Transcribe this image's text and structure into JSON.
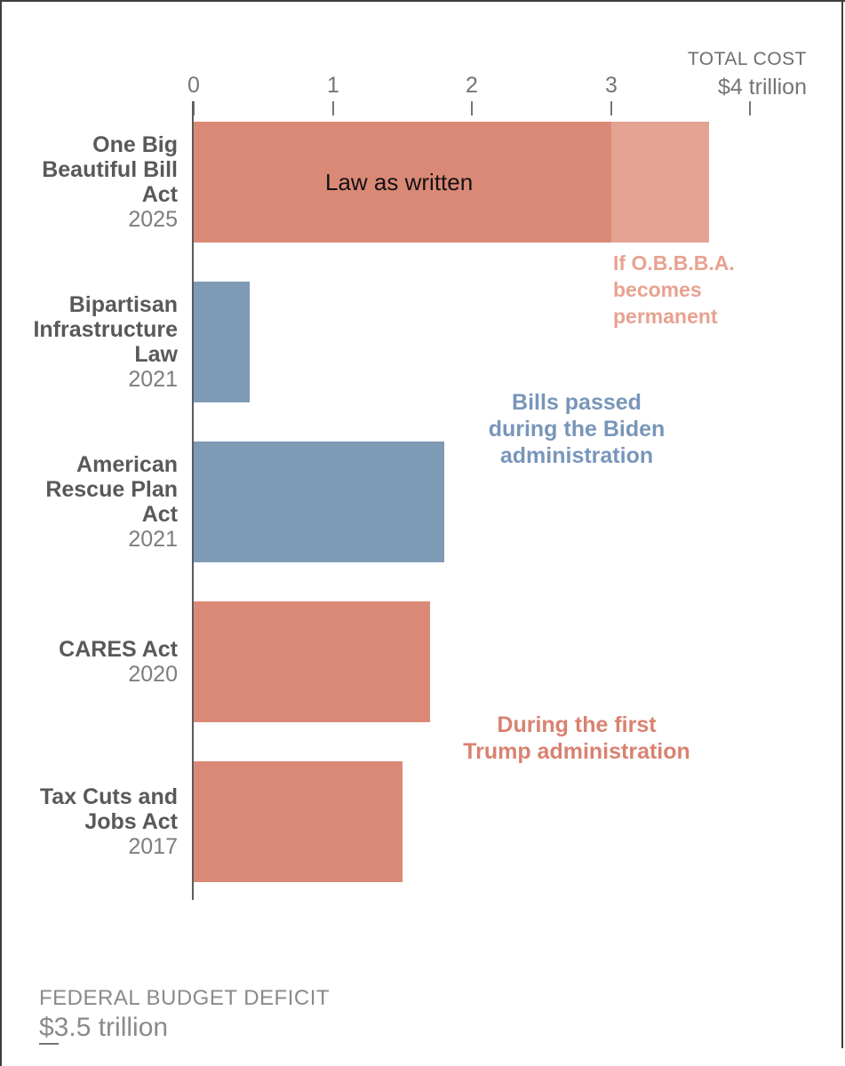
{
  "colors": {
    "salmon": "#DB8977",
    "salmon-light": "#E3A392",
    "blue": "#7E9AB5",
    "blue-text": "#7896BA",
    "salmon-text": "#D98270",
    "salmon-light-text": "#E8A291",
    "axis": "#5C5C5C",
    "tick": "#757575",
    "axis-title": "#6E6E6E",
    "label-strong": "#595959",
    "label-year": "#7D7D7D",
    "footer": "#8A8A8A",
    "frame": "#3F3F3F",
    "bar-label-dark": "#121212"
  },
  "chart_data": {
    "type": "bar",
    "orientation": "horizontal",
    "unit": "trillions of dollars",
    "axis": {
      "title_line1": "TOTAL COST",
      "title_line2": "$4 trillion",
      "ticks": [
        0,
        1,
        2,
        3,
        4
      ],
      "tick_labels": [
        "0",
        "1",
        "2",
        "3"
      ],
      "xlim": [
        0,
        4.68
      ],
      "grid": false,
      "position": "top"
    },
    "bars": [
      {
        "name_lines": [
          "One Big",
          "Beautiful Bill",
          "Act"
        ],
        "year": "2025",
        "value": 3.0,
        "extension_value": 3.7,
        "color_key": "salmon",
        "extension_color_key": "salmon-light",
        "bar_label": "Law as written"
      },
      {
        "name_lines": [
          "Bipartisan",
          "Infrastructure",
          "Law"
        ],
        "year": "2021",
        "value": 0.4,
        "color_key": "blue"
      },
      {
        "name_lines": [
          "American",
          "Rescue Plan",
          "Act"
        ],
        "year": "2021",
        "value": 1.8,
        "color_key": "blue"
      },
      {
        "name_lines": [
          "CARES Act"
        ],
        "year": "2020",
        "value": 1.7,
        "color_key": "salmon"
      },
      {
        "name_lines": [
          "Tax Cuts and",
          "Jobs Act"
        ],
        "year": "2017",
        "value": 1.5,
        "color_key": "salmon"
      }
    ],
    "annotations": {
      "obbba": {
        "lines": [
          "If O.B.B.B.A.",
          "becomes",
          "permanent"
        ],
        "color_key": "salmon-light-text"
      },
      "biden": {
        "lines": [
          "Bills passed",
          "during the Biden",
          "administration"
        ],
        "color_key": "blue-text"
      },
      "trump": {
        "lines": [
          "During the first",
          "Trump administration"
        ],
        "color_key": "salmon-text"
      }
    },
    "footer": {
      "label": "FEDERAL BUDGET DEFICIT",
      "value": "$3.5 trillion"
    }
  }
}
